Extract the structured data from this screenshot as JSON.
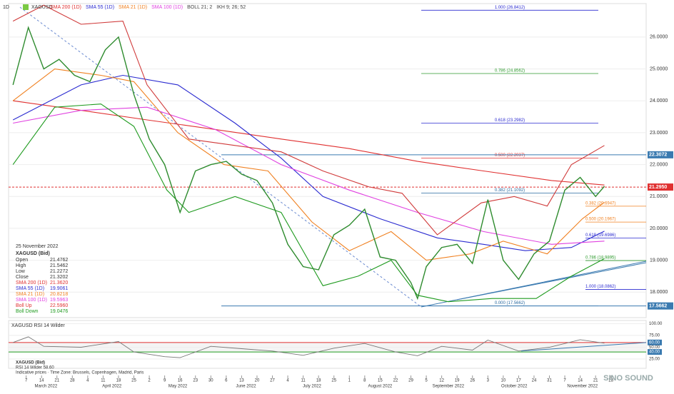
{
  "chart_data": [
    {
      "type": "line",
      "timeframe": "1D",
      "symbol": "XAGUSD",
      "indicators": [
        "SMA 200 (1D)",
        "SMA 55 (1D)",
        "SMA 21 (1D)",
        "SMA 100 (1D)",
        "BOLL 21; 2",
        "IKH 9; 26; 52"
      ],
      "indicator_colors": [
        "#e03030",
        "#2a2ad0",
        "#f08020",
        "#e040e0",
        "#444444",
        "#444444"
      ],
      "xlim": [
        "2022-02-27",
        "2022-12-14"
      ],
      "ylim": [
        17.2,
        27.05
      ],
      "yticks": [
        {
          "value": 18,
          "label": "18.0000"
        },
        {
          "value": 19,
          "label": "19.0000"
        },
        {
          "value": 20,
          "label": "20.0000"
        },
        {
          "value": 21,
          "label": "21.0000"
        },
        {
          "value": 22,
          "label": "22.0000"
        },
        {
          "value": 23,
          "label": "23.0000"
        },
        {
          "value": 24,
          "label": "24.0000"
        },
        {
          "value": 25,
          "label": "25.0000"
        },
        {
          "value": 26,
          "label": "26.0000"
        }
      ],
      "xticks": [
        {
          "value": "2022-03-07",
          "label": "7"
        },
        {
          "value": "2022-03-14",
          "label": "14"
        },
        {
          "value": "2022-03-21",
          "label": "21"
        },
        {
          "value": "2022-03-28",
          "label": "28"
        },
        {
          "value": "2022-04-04",
          "label": "4"
        },
        {
          "value": "2022-04-11",
          "label": "11"
        },
        {
          "value": "2022-04-18",
          "label": "18"
        },
        {
          "value": "2022-04-25",
          "label": "25"
        },
        {
          "value": "2022-05-02",
          "label": "2"
        },
        {
          "value": "2022-05-09",
          "label": "9"
        },
        {
          "value": "2022-05-16",
          "label": "16"
        },
        {
          "value": "2022-05-23",
          "label": "23"
        },
        {
          "value": "2022-05-30",
          "label": "30"
        },
        {
          "value": "2022-06-06",
          "label": "6"
        },
        {
          "value": "2022-06-13",
          "label": "13"
        },
        {
          "value": "2022-06-20",
          "label": "20"
        },
        {
          "value": "2022-06-27",
          "label": "27"
        },
        {
          "value": "2022-07-04",
          "label": "4"
        },
        {
          "value": "2022-07-11",
          "label": "11"
        },
        {
          "value": "2022-07-18",
          "label": "18"
        },
        {
          "value": "2022-07-25",
          "label": "25"
        },
        {
          "value": "2022-08-01",
          "label": "1"
        },
        {
          "value": "2022-08-08",
          "label": "8"
        },
        {
          "value": "2022-08-15",
          "label": "15"
        },
        {
          "value": "2022-08-22",
          "label": "22"
        },
        {
          "value": "2022-08-29",
          "label": "29"
        },
        {
          "value": "2022-09-05",
          "label": "5"
        },
        {
          "value": "2022-09-12",
          "label": "12"
        },
        {
          "value": "2022-09-19",
          "label": "19"
        },
        {
          "value": "2022-09-26",
          "label": "26"
        },
        {
          "value": "2022-10-03",
          "label": "3"
        },
        {
          "value": "2022-10-10",
          "label": "10"
        },
        {
          "value": "2022-10-17",
          "label": "17"
        },
        {
          "value": "2022-10-24",
          "label": "24"
        },
        {
          "value": "2022-10-31",
          "label": "31"
        },
        {
          "value": "2022-11-07",
          "label": "7"
        },
        {
          "value": "2022-11-14",
          "label": "14"
        },
        {
          "value": "2022-11-21",
          "label": "21"
        },
        {
          "value": "2022-11-28",
          "label": "28"
        }
      ],
      "months": [
        {
          "value": "2022-03-16",
          "label": "March 2022"
        },
        {
          "value": "2022-04-15",
          "label": "April 2022"
        },
        {
          "value": "2022-05-15",
          "label": "May 2022"
        },
        {
          "value": "2022-06-15",
          "label": "June 2022"
        },
        {
          "value": "2022-07-15",
          "label": "July 2022"
        },
        {
          "value": "2022-08-15",
          "label": "August 2022"
        },
        {
          "value": "2022-09-15",
          "label": "September 2022"
        },
        {
          "value": "2022-10-15",
          "label": "October 2022"
        },
        {
          "value": "2022-11-15",
          "label": "November 2022"
        }
      ],
      "series": [
        {
          "name": "XAGUSD (Bid)",
          "color": "#2e8b2e",
          "x": [
            "2022-03-01",
            "2022-03-08",
            "2022-03-15",
            "2022-03-22",
            "2022-03-29",
            "2022-04-05",
            "2022-04-12",
            "2022-04-18",
            "2022-04-25",
            "2022-05-02",
            "2022-05-09",
            "2022-05-16",
            "2022-05-23",
            "2022-05-30",
            "2022-06-06",
            "2022-06-13",
            "2022-06-20",
            "2022-06-27",
            "2022-07-04",
            "2022-07-11",
            "2022-07-18",
            "2022-07-25",
            "2022-08-01",
            "2022-08-08",
            "2022-08-15",
            "2022-08-22",
            "2022-08-29",
            "2022-09-01",
            "2022-09-05",
            "2022-09-12",
            "2022-09-19",
            "2022-09-26",
            "2022-10-03",
            "2022-10-10",
            "2022-10-17",
            "2022-10-24",
            "2022-10-31",
            "2022-11-07",
            "2022-11-14",
            "2022-11-21",
            "2022-11-25"
          ],
          "values": [
            24.5,
            26.3,
            25.0,
            25.3,
            24.8,
            24.6,
            25.6,
            26.0,
            24.2,
            22.8,
            22.0,
            20.5,
            21.8,
            22.0,
            22.1,
            21.7,
            21.5,
            20.8,
            19.5,
            18.8,
            18.7,
            19.8,
            20.1,
            20.6,
            19.1,
            19.0,
            18.3,
            17.8,
            18.8,
            19.4,
            19.5,
            18.9,
            20.9,
            19.0,
            18.4,
            19.2,
            19.6,
            21.2,
            21.6,
            21.0,
            21.32
          ]
        },
        {
          "name": "SMA 200 (1D)",
          "color": "#e03030",
          "x": [
            "2022-03-01",
            "2022-04-01",
            "2022-05-01",
            "2022-06-01",
            "2022-07-01",
            "2022-08-01",
            "2022-09-01",
            "2022-10-01",
            "2022-11-01",
            "2022-11-25"
          ],
          "values": [
            24.0,
            23.7,
            23.4,
            23.1,
            22.8,
            22.5,
            22.1,
            21.8,
            21.5,
            21.36
          ]
        },
        {
          "name": "SMA 55 (1D)",
          "color": "#2a2ad0",
          "x": [
            "2022-03-01",
            "2022-04-01",
            "2022-04-20",
            "2022-05-15",
            "2022-06-10",
            "2022-07-01",
            "2022-07-20",
            "2022-08-15",
            "2022-09-10",
            "2022-10-01",
            "2022-10-20",
            "2022-11-10",
            "2022-11-25"
          ],
          "values": [
            23.4,
            24.5,
            24.8,
            24.5,
            23.3,
            22.2,
            21.0,
            20.3,
            19.7,
            19.5,
            19.3,
            19.4,
            19.91
          ]
        },
        {
          "name": "SMA 21 (1D)",
          "color": "#f08020",
          "x": [
            "2022-03-01",
            "2022-03-20",
            "2022-04-10",
            "2022-04-25",
            "2022-05-15",
            "2022-06-05",
            "2022-06-25",
            "2022-07-15",
            "2022-08-01",
            "2022-08-20",
            "2022-09-05",
            "2022-09-25",
            "2022-10-10",
            "2022-10-30",
            "2022-11-15",
            "2022-11-25"
          ],
          "values": [
            24.0,
            25.0,
            24.8,
            24.6,
            23.0,
            22.0,
            21.8,
            20.2,
            19.3,
            19.9,
            19.0,
            19.2,
            19.6,
            19.2,
            20.3,
            20.82
          ]
        },
        {
          "name": "SMA 100 (1D)",
          "color": "#e040e0",
          "x": [
            "2022-03-01",
            "2022-04-01",
            "2022-05-01",
            "2022-06-01",
            "2022-07-01",
            "2022-08-01",
            "2022-09-01",
            "2022-10-01",
            "2022-11-01",
            "2022-11-25"
          ],
          "values": [
            23.3,
            23.7,
            23.8,
            23.1,
            22.0,
            21.2,
            20.5,
            19.9,
            19.5,
            19.6
          ]
        },
        {
          "name": "Boll Up",
          "color": "#d03a3a",
          "x": [
            "2022-03-01",
            "2022-03-15",
            "2022-04-01",
            "2022-04-20",
            "2022-05-01",
            "2022-05-20",
            "2022-06-10",
            "2022-07-01",
            "2022-07-20",
            "2022-08-10",
            "2022-08-25",
            "2022-09-10",
            "2022-09-30",
            "2022-10-15",
            "2022-10-30",
            "2022-11-10",
            "2022-11-25"
          ],
          "values": [
            26.5,
            27.0,
            26.4,
            26.5,
            24.5,
            22.8,
            22.6,
            22.4,
            21.8,
            21.3,
            21.1,
            19.8,
            20.8,
            21.0,
            20.7,
            22.0,
            22.6
          ]
        },
        {
          "name": "Boll Down",
          "color": "#1e9a1e",
          "x": [
            "2022-03-01",
            "2022-03-20",
            "2022-04-10",
            "2022-04-25",
            "2022-05-10",
            "2022-05-20",
            "2022-06-10",
            "2022-07-01",
            "2022-07-20",
            "2022-08-05",
            "2022-08-20",
            "2022-09-01",
            "2022-09-15",
            "2022-10-05",
            "2022-10-25",
            "2022-11-10",
            "2022-11-25"
          ],
          "values": [
            22.0,
            23.8,
            23.9,
            23.2,
            21.2,
            20.5,
            21.0,
            20.5,
            18.2,
            18.5,
            19.0,
            17.9,
            17.7,
            17.8,
            17.8,
            18.5,
            19.05
          ]
        }
      ],
      "fib_left": [
        {
          "value": 26.8412,
          "label": "1.000 (26.8412)"
        },
        {
          "value": 24.8562,
          "label": "0.786 (24.8562)"
        },
        {
          "value": 23.2982,
          "label": "0.618 (23.2982)"
        },
        {
          "value": 22.2037,
          "label": "0.500 (22.2037)"
        },
        {
          "value": 21.1092,
          "label": "0.382 (21.1092)"
        },
        {
          "value": 17.5662,
          "label": "0.000 (17.5662)"
        }
      ],
      "fib_right": [
        {
          "value": 20.6947,
          "label": "0.382 (20.6947)"
        },
        {
          "value": 20.1967,
          "label": "0.500 (20.1967)"
        },
        {
          "value": 19.6986,
          "label": "0.618 (19.6986)"
        },
        {
          "value": 18.9895,
          "label": "0.786 (18.9895)"
        },
        {
          "value": 18.0862,
          "label": "1.000 (18.0862)"
        }
      ],
      "levels": [
        {
          "value": 22.3072,
          "label": "22.3072"
        },
        {
          "value": 21.295,
          "label": "21.2950"
        },
        {
          "value": 17.5662,
          "label": "17.5662"
        }
      ],
      "info": {
        "date": "25 November 2022",
        "instrument": "XAGUSD (Bid)",
        "rows": [
          [
            "Open",
            "21.4762"
          ],
          [
            "High",
            "21.5462"
          ],
          [
            "Low",
            "21.2272"
          ],
          [
            "Close",
            "21.3202"
          ],
          [
            "SMA 200 (1D)",
            "21.3620"
          ],
          [
            "SMA 55 (1D)",
            "19.9061"
          ],
          [
            "SMA 21 (1D)",
            "20.8218"
          ],
          [
            "SMA 100 (1D)",
            "19.5963"
          ],
          [
            "Boll Up",
            "22.5960"
          ],
          [
            "Boll Down",
            "19.0476"
          ]
        ],
        "row_colors": [
          "#333333",
          "#333333",
          "#333333",
          "#333333",
          "#e03030",
          "#2a2ad0",
          "#f08020",
          "#e040e0",
          "#e03030",
          "#1e9a1e"
        ]
      },
      "watermark": "SINO SOUND"
    },
    {
      "type": "line",
      "title": "XAGUSD  RSI 14 Wilder",
      "ylim": [
        10,
        102
      ],
      "yticks": [
        {
          "value": 100,
          "label": "100.00"
        },
        {
          "value": 75,
          "label": "75.00"
        },
        {
          "value": 60,
          "label": "60.00"
        },
        {
          "value": 50,
          "label": "50.00"
        },
        {
          "value": 40,
          "label": "40.00"
        },
        {
          "value": 25,
          "label": "25.00"
        }
      ],
      "series": [
        {
          "name": "RSI 14 Wilder",
          "color": "#777777",
          "x": [
            "2022-03-01",
            "2022-03-08",
            "2022-03-15",
            "2022-04-01",
            "2022-04-18",
            "2022-04-25",
            "2022-05-09",
            "2022-05-16",
            "2022-05-30",
            "2022-06-13",
            "2022-06-27",
            "2022-07-11",
            "2022-07-25",
            "2022-08-08",
            "2022-08-22",
            "2022-09-01",
            "2022-09-12",
            "2022-09-26",
            "2022-10-03",
            "2022-10-17",
            "2022-10-31",
            "2022-11-14",
            "2022-11-25"
          ],
          "values": [
            60,
            72,
            52,
            50,
            62,
            40,
            30,
            28,
            52,
            47,
            42,
            33,
            48,
            58,
            40,
            32,
            52,
            44,
            65,
            42,
            50,
            66,
            58.6
          ]
        }
      ],
      "footer": [
        "XAGUSD (Bid)",
        "RSI 14 Wilder 58.60",
        "Indicative prices · Time Zone: Brussels, Copenhagen, Madrid, Paris"
      ]
    }
  ]
}
